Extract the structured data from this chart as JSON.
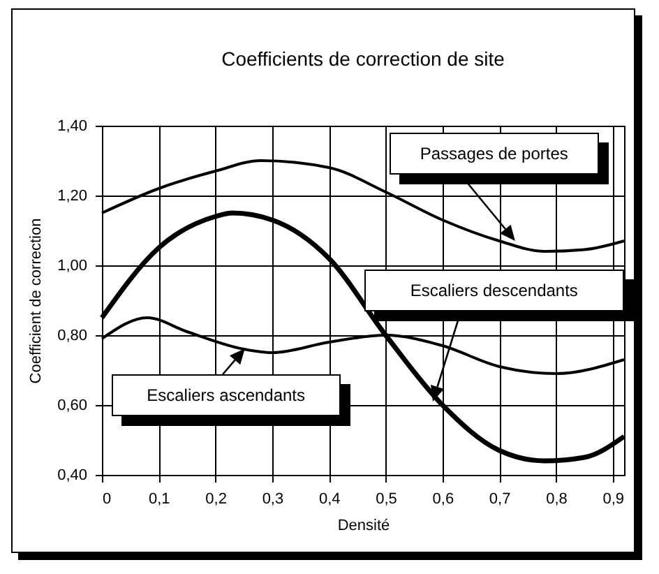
{
  "chart_data": {
    "type": "line",
    "title": "Coefficients de correction de site",
    "xlabel": "Densité",
    "ylabel": "Coefficient de correction",
    "xlim": [
      0,
      0.92
    ],
    "ylim": [
      0.4,
      1.4
    ],
    "xticks": [
      0,
      {
        "value": 0.1,
        "label": "0,1"
      },
      {
        "value": 0.2,
        "label": "0,2"
      },
      {
        "value": 0.3,
        "label": "0,3"
      },
      {
        "value": 0.4,
        "label": "0,4"
      },
      {
        "value": 0.5,
        "label": "0,5"
      },
      {
        "value": 0.6,
        "label": "0,6"
      },
      {
        "value": 0.7,
        "label": "0,7"
      },
      {
        "value": 0.8,
        "label": "0,8"
      },
      {
        "value": 0.9,
        "label": "0,9"
      }
    ],
    "yticks": [
      {
        "value": 0.4,
        "label": "0,40"
      },
      {
        "value": 0.6,
        "label": "0,60"
      },
      {
        "value": 0.8,
        "label": "0,80"
      },
      {
        "value": 1.0,
        "label": "1,00"
      },
      {
        "value": 1.2,
        "label": "1,20"
      },
      {
        "value": 1.4,
        "label": "1,40"
      }
    ],
    "grid": true,
    "line_style": "solid",
    "marker": "none",
    "series": [
      {
        "name": "Passages de portes",
        "color": "#000000",
        "x": [
          0,
          0.1,
          0.2,
          0.28,
          0.4,
          0.5,
          0.6,
          0.7,
          0.78,
          0.85,
          0.92
        ],
        "values": [
          1.15,
          1.22,
          1.27,
          1.3,
          1.28,
          1.21,
          1.13,
          1.07,
          1.04,
          1.045,
          1.07
        ]
      },
      {
        "name": "Escaliers descendants",
        "color": "#000000",
        "x": [
          0,
          0.1,
          0.2,
          0.23,
          0.3,
          0.4,
          0.5,
          0.6,
          0.7,
          0.78,
          0.85,
          0.92
        ],
        "values": [
          0.85,
          1.05,
          1.14,
          1.15,
          1.13,
          1.02,
          0.8,
          0.6,
          0.47,
          0.44,
          0.45,
          0.51
        ]
      },
      {
        "name": "Escaliers ascendants",
        "color": "#000000",
        "x": [
          0,
          0.08,
          0.15,
          0.25,
          0.3,
          0.4,
          0.5,
          0.6,
          0.7,
          0.8,
          0.92
        ],
        "values": [
          0.79,
          0.85,
          0.81,
          0.76,
          0.75,
          0.78,
          0.8,
          0.77,
          0.71,
          0.69,
          0.73
        ]
      }
    ]
  }
}
